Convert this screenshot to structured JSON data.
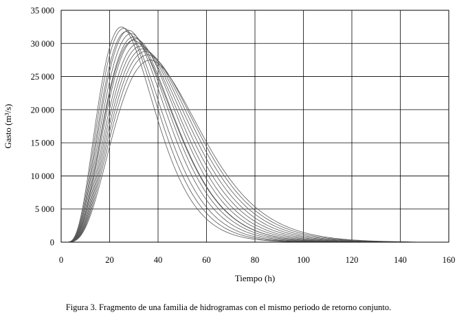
{
  "caption": "Figura 3. Fragmento de una familia de hidrogramas con el mismo periodo de retorno conjunto.",
  "chart_data": {
    "type": "line",
    "title": "",
    "xlabel": "Tiempo (h)",
    "ylabel": "Gasto (m³/s)",
    "xlim": [
      0,
      160
    ],
    "ylim": [
      0,
      35000
    ],
    "xticks": [
      0,
      20,
      40,
      60,
      80,
      100,
      120,
      140,
      160
    ],
    "xtick_labels": [
      "0",
      "20",
      "40",
      "60",
      "80",
      "100",
      "120",
      "140",
      "160"
    ],
    "yticks": [
      0,
      5000,
      10000,
      15000,
      20000,
      25000,
      30000,
      35000
    ],
    "ytick_labels": [
      "0",
      "5 000",
      "10 000",
      "15 000",
      "20 000",
      "25 000",
      "30 000",
      "35 000"
    ],
    "grid": true,
    "legend": "none",
    "line_color": "#555555",
    "series": [
      {
        "peak_time": 25,
        "peak_flow": 32500,
        "end_time": 140
      },
      {
        "peak_time": 26,
        "peak_flow": 32300,
        "end_time": 140
      },
      {
        "peak_time": 27,
        "peak_flow": 31800,
        "end_time": 142
      },
      {
        "peak_time": 28,
        "peak_flow": 32000,
        "end_time": 142
      },
      {
        "peak_time": 29,
        "peak_flow": 31500,
        "end_time": 143
      },
      {
        "peak_time": 30,
        "peak_flow": 31000,
        "end_time": 144
      },
      {
        "peak_time": 30,
        "peak_flow": 30500,
        "end_time": 144
      },
      {
        "peak_time": 31,
        "peak_flow": 30700,
        "end_time": 145
      },
      {
        "peak_time": 32,
        "peak_flow": 30000,
        "end_time": 146
      },
      {
        "peak_time": 33,
        "peak_flow": 29600,
        "end_time": 146
      },
      {
        "peak_time": 34,
        "peak_flow": 29200,
        "end_time": 147
      },
      {
        "peak_time": 35,
        "peak_flow": 28800,
        "end_time": 148
      },
      {
        "peak_time": 36,
        "peak_flow": 28300,
        "end_time": 148
      },
      {
        "peak_time": 37,
        "peak_flow": 27500,
        "end_time": 149
      }
    ]
  }
}
